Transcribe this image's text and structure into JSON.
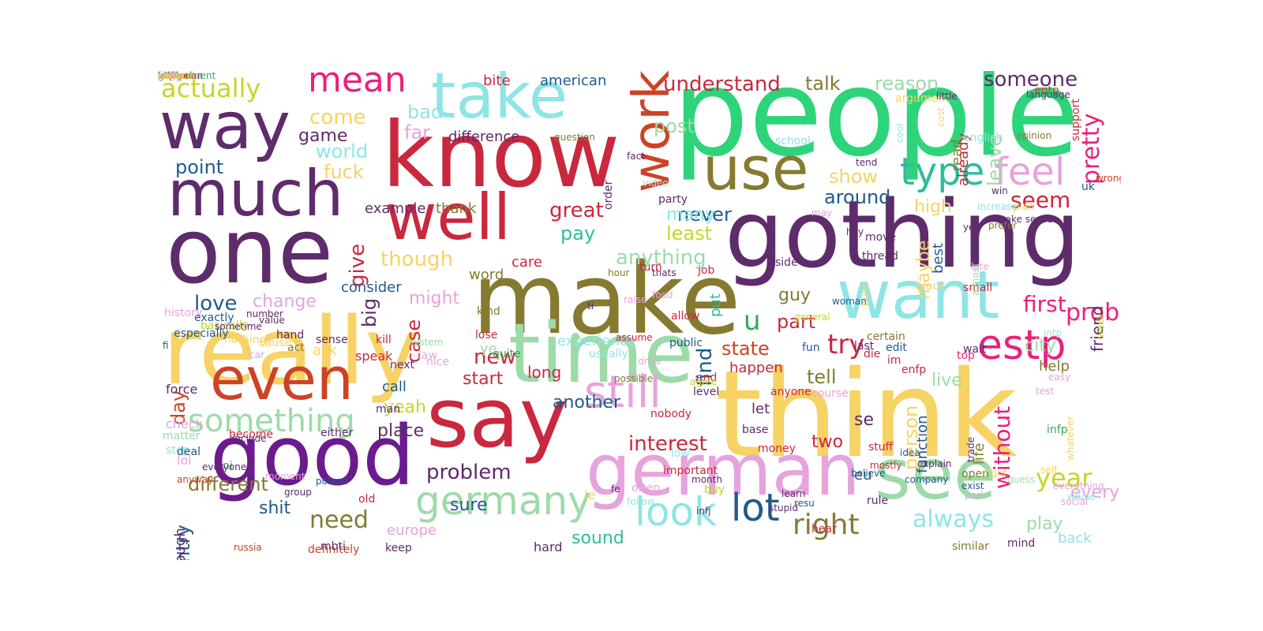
{
  "words": [
    {
      "text": "people",
      "color": "#2ed47a"
    },
    {
      "text": "think",
      "color": "#f7d264"
    },
    {
      "text": "really",
      "color": "#f7d264"
    },
    {
      "text": "gothing",
      "color": "#5e2b6b"
    },
    {
      "text": "make",
      "color": "#857a30"
    },
    {
      "text": "know",
      "color": "#c9283e"
    },
    {
      "text": "one",
      "color": "#5e2b6b"
    },
    {
      "text": "say",
      "color": "#c9283e"
    },
    {
      "text": "time",
      "color": "#9cdba8"
    },
    {
      "text": "good",
      "color": "#6a1b8e"
    },
    {
      "text": "want",
      "color": "#8ee5e5"
    },
    {
      "text": "german",
      "color": "#e6a3dc"
    },
    {
      "text": "see",
      "color": "#9cdba8"
    },
    {
      "text": "well",
      "color": "#c9283e"
    },
    {
      "text": "way",
      "color": "#5e2b6b"
    },
    {
      "text": "much",
      "color": "#5e2b6b"
    },
    {
      "text": "take",
      "color": "#8ee5e5"
    },
    {
      "text": "use",
      "color": "#857a30"
    },
    {
      "text": "even",
      "color": "#cc4325"
    },
    {
      "text": "work",
      "color": "#cc4325"
    },
    {
      "text": "germany",
      "color": "#9cdba8"
    },
    {
      "text": "still",
      "color": "#e6a3dc"
    },
    {
      "text": "estp",
      "color": "#e8217d"
    },
    {
      "text": "look",
      "color": "#8ee5e5"
    },
    {
      "text": "lot",
      "color": "#1f5a8c"
    },
    {
      "text": "something",
      "color": "#9cdba8"
    },
    {
      "text": "feel",
      "color": "#e6a3dc"
    },
    {
      "text": "type",
      "color": "#2ebc9c"
    },
    {
      "text": "mean",
      "color": "#e8217d"
    },
    {
      "text": "actually",
      "color": "#c4d62a"
    },
    {
      "text": "right",
      "color": "#857a30"
    },
    {
      "text": "u",
      "color": "#2eab56"
    },
    {
      "text": "try",
      "color": "#c9283e"
    },
    {
      "text": "problem",
      "color": "#5e2b6b"
    },
    {
      "text": "always",
      "color": "#8ee5e5"
    },
    {
      "text": "year",
      "color": "#c4d62a"
    },
    {
      "text": "probably",
      "color": "#e8217d"
    },
    {
      "text": "someone",
      "color": "#5e2b6b"
    },
    {
      "text": "need",
      "color": "#857a30"
    },
    {
      "text": "different",
      "color": "#857a30"
    },
    {
      "text": "country",
      "color": "#1f5a8c"
    },
    {
      "text": "come",
      "color": "#f7d264"
    },
    {
      "text": "first",
      "color": "#e8217d"
    },
    {
      "text": "seem",
      "color": "#c9283e"
    },
    {
      "text": "interest",
      "color": "#c9283e"
    },
    {
      "text": "find",
      "color": "#1f5a8c"
    },
    {
      "text": "understand",
      "color": "#c9283e"
    },
    {
      "text": "talk",
      "color": "#857a30"
    },
    {
      "text": "reason",
      "color": "#9cdba8"
    },
    {
      "text": "point",
      "color": "#1f5a8c"
    },
    {
      "text": "game",
      "color": "#5e2b6b"
    },
    {
      "text": "world",
      "color": "#8ee5e5"
    },
    {
      "text": "fuck",
      "color": "#f7d264"
    },
    {
      "text": "post",
      "color": "#9cdba8"
    },
    {
      "text": "bad",
      "color": "#8ee5e5"
    },
    {
      "text": "far",
      "color": "#e6a3dc"
    },
    {
      "text": "difference",
      "color": "#5e2b6b"
    },
    {
      "text": "great",
      "color": "#c9283e"
    },
    {
      "text": "pay",
      "color": "#2ebc9c"
    },
    {
      "text": "least",
      "color": "#c4d62a"
    },
    {
      "text": "never",
      "color": "#1f5a8c"
    },
    {
      "text": "anything",
      "color": "#9cdba8"
    },
    {
      "text": "around",
      "color": "#1f5a8c"
    },
    {
      "text": "show",
      "color": "#f7d264"
    },
    {
      "text": "high",
      "color": "#f7d264"
    },
    {
      "text": "many",
      "color": "#8ee5e5"
    },
    {
      "text": "though",
      "color": "#f7d264"
    },
    {
      "text": "love",
      "color": "#1f5a8c"
    },
    {
      "text": "change",
      "color": "#e6a3dc"
    },
    {
      "text": "might",
      "color": "#e6a3dc"
    },
    {
      "text": "state",
      "color": "#cc4325"
    },
    {
      "text": "part",
      "color": "#c9283e"
    },
    {
      "text": "guy",
      "color": "#857a30"
    },
    {
      "text": "tell",
      "color": "#857a30"
    },
    {
      "text": "city",
      "color": "#9cdba8"
    },
    {
      "text": "new",
      "color": "#c9283e"
    },
    {
      "text": "start",
      "color": "#c9283e"
    },
    {
      "text": "yeah",
      "color": "#c4d62a"
    },
    {
      "text": "live",
      "color": "#9cdba8"
    },
    {
      "text": "happen",
      "color": "#c9283e"
    },
    {
      "text": "example",
      "color": "#5e2b6b"
    },
    {
      "text": "thank",
      "color": "#857a30"
    },
    {
      "text": "give",
      "color": "#c9283e"
    },
    {
      "text": "big",
      "color": "#5e2b6b"
    },
    {
      "text": "case",
      "color": "#c9283e"
    },
    {
      "text": "day",
      "color": "#cc4325"
    },
    {
      "text": "shit",
      "color": "#1f5a8c"
    },
    {
      "text": "sure",
      "color": "#1f5a8c"
    },
    {
      "text": "place",
      "color": "#5e2b6b"
    },
    {
      "text": "call",
      "color": "#1f5a8c"
    },
    {
      "text": "another",
      "color": "#1f5a8c"
    },
    {
      "text": "experience",
      "color": "#8ee5e5"
    },
    {
      "text": "sound",
      "color": "#2ebc9c"
    },
    {
      "text": "play",
      "color": "#9cdba8"
    },
    {
      "text": "every",
      "color": "#e6a3dc"
    },
    {
      "text": "back",
      "color": "#8ee5e5"
    },
    {
      "text": "help",
      "color": "#857a30"
    },
    {
      "text": "without",
      "color": "#e8217d"
    },
    {
      "text": "life",
      "color": "#857a30"
    },
    {
      "text": "function",
      "color": "#1f5a8c"
    },
    {
      "text": "person",
      "color": "#f7d264"
    },
    {
      "text": "friend",
      "color": "#5e2b6b"
    },
    {
      "text": "pretty",
      "color": "#e8217d"
    },
    {
      "text": "leave",
      "color": "#9cdba8"
    },
    {
      "text": "read",
      "color": "#857a30"
    },
    {
      "text": "already",
      "color": "#c9283e"
    },
    {
      "text": "maybe",
      "color": "#f7d264"
    },
    {
      "text": "best",
      "color": "#1f5a8c"
    },
    {
      "text": "long",
      "color": "#c9283e"
    },
    {
      "text": "two",
      "color": "#c9283e"
    },
    {
      "text": "se",
      "color": "#5e2b6b"
    },
    {
      "text": "let",
      "color": "#5e2b6b"
    },
    {
      "text": "eu",
      "color": "#1f5a8c"
    },
    {
      "text": "europe",
      "color": "#e6a3dc"
    },
    {
      "text": "enough",
      "color": "#5e2b6b"
    },
    {
      "text": "consider",
      "color": "#1f5a8c"
    },
    {
      "text": "word",
      "color": "#857a30"
    },
    {
      "text": "care",
      "color": "#c9283e"
    },
    {
      "text": "hard",
      "color": "#5e2b6b"
    },
    {
      "text": "american",
      "color": "#1f5a8c"
    },
    {
      "text": "bite",
      "color": "#c9283e"
    },
    {
      "text": "ye",
      "color": "#9cdba8"
    },
    {
      "text": "put",
      "color": "#2ebc9c"
    },
    {
      "text": "ask",
      "color": "#f7d264"
    },
    {
      "text": "speak",
      "color": "#c9283e"
    },
    {
      "text": "definitely",
      "color": "#cc4325"
    },
    {
      "text": "mbti",
      "color": "#5e2b6b"
    },
    {
      "text": "russia",
      "color": "#cc4325"
    },
    {
      "text": "either",
      "color": "#5e2b6b"
    },
    {
      "text": "become",
      "color": "#c9283e"
    },
    {
      "text": "man",
      "color": "#5e2b6b"
    },
    {
      "text": "stuff",
      "color": "#c9283e"
    },
    {
      "text": "money",
      "color": "#c9283e"
    },
    {
      "text": "base",
      "color": "#5e2b6b"
    },
    {
      "text": "rule",
      "color": "#5e2b6b"
    },
    {
      "text": "infp",
      "color": "#2eab56"
    },
    {
      "text": "mind",
      "color": "#5e2b6b"
    },
    {
      "text": "similar",
      "color": "#857a30"
    },
    {
      "text": "hear",
      "color": "#c9283e"
    },
    {
      "text": "infj",
      "color": "#5e2b6b"
    },
    {
      "text": "month",
      "color": "#5e2b6b"
    },
    {
      "text": "keep",
      "color": "#5e2b6b"
    },
    {
      "text": "old",
      "color": "#c9283e"
    },
    {
      "text": "le",
      "color": "#f7d264"
    },
    {
      "text": "open",
      "color": "#857a30"
    },
    {
      "text": "fun",
      "color": "#1f5a8c"
    },
    {
      "text": "last",
      "color": "#5e2b6b"
    },
    {
      "text": "edit",
      "color": "#1f5a8c"
    },
    {
      "text": "certain",
      "color": "#857a30"
    },
    {
      "text": "lose",
      "color": "#c9283e"
    },
    {
      "text": "kind",
      "color": "#857a30"
    },
    {
      "text": "quite",
      "color": "#2eab56"
    },
    {
      "text": "public",
      "color": "#1f5a8c"
    },
    {
      "text": "allow",
      "color": "#c9283e"
    },
    {
      "text": "end",
      "color": "#c9283e"
    },
    {
      "text": "level",
      "color": "#5e2b6b"
    },
    {
      "text": "anyone",
      "color": "#c9283e"
    },
    {
      "text": "course",
      "color": "#e6a3dc"
    },
    {
      "text": "die",
      "color": "#c9283e"
    },
    {
      "text": "enfp",
      "color": "#c9283e"
    },
    {
      "text": "im",
      "color": "#c9283e"
    },
    {
      "text": "wait",
      "color": "#5e2b6b"
    },
    {
      "text": "top",
      "color": "#e8217d"
    },
    {
      "text": "small",
      "color": "#c9283e"
    },
    {
      "text": "black",
      "color": "#f7d264"
    },
    {
      "text": "thread",
      "color": "#5e2b6b"
    },
    {
      "text": "move",
      "color": "#5e2b6b"
    },
    {
      "text": "side",
      "color": "#5e2b6b"
    },
    {
      "text": "job",
      "color": "#c9283e"
    },
    {
      "text": "turn",
      "color": "#c9283e"
    },
    {
      "text": "hour",
      "color": "#857a30"
    },
    {
      "text": "thats",
      "color": "#5e2b6b"
    },
    {
      "text": "party",
      "color": "#5e2b6b"
    },
    {
      "text": "order",
      "color": "#5e2b6b"
    },
    {
      "text": "video",
      "color": "#8ee5e5"
    },
    {
      "text": "fact",
      "color": "#5e2b6b"
    },
    {
      "text": "question",
      "color": "#857a30"
    },
    {
      "text": "school",
      "color": "#8ee5e5"
    },
    {
      "text": "argument",
      "color": "#f7d264"
    },
    {
      "text": "english",
      "color": "#8ee5e5"
    },
    {
      "text": "opinion",
      "color": "#857a30"
    },
    {
      "text": "win",
      "color": "#5e2b6b"
    },
    {
      "text": "wrong",
      "color": "#cc4325"
    },
    {
      "text": "uk",
      "color": "#1f5a8c"
    },
    {
      "text": "support",
      "color": "#c9283e"
    },
    {
      "text": "entp",
      "color": "#cc4325"
    },
    {
      "text": "language",
      "color": "#5e2b6b"
    },
    {
      "text": "little",
      "color": "#5e2b6b"
    },
    {
      "text": "cost",
      "color": "#f7d264"
    },
    {
      "text": "cool",
      "color": "#8ee5e5"
    },
    {
      "text": "tend",
      "color": "#5e2b6b"
    },
    {
      "text": "plan",
      "color": "#f7d264"
    },
    {
      "text": "make sense",
      "color": "#5e2b6b"
    },
    {
      "text": "prefer",
      "color": "#857a30"
    },
    {
      "text": "increase",
      "color": "#8ee5e5"
    },
    {
      "text": "yet",
      "color": "#5e2b6b"
    },
    {
      "text": "late",
      "color": "#e6a3dc"
    },
    {
      "text": "almost",
      "color": "#9cdba8"
    },
    {
      "text": "hey",
      "color": "#5e2b6b"
    },
    {
      "text": "may",
      "color": "#e6a3dc"
    },
    {
      "text": "build",
      "color": "#f7d264"
    },
    {
      "text": "woman",
      "color": "#1f5a8c"
    },
    {
      "text": "general",
      "color": "#c4d62a"
    },
    {
      "text": "intp",
      "color": "#8ee5e5"
    },
    {
      "text": "week",
      "color": "#c4d62a"
    },
    {
      "text": "easy",
      "color": "#e6a3dc"
    },
    {
      "text": "test",
      "color": "#e6a3dc"
    },
    {
      "text": "whatever",
      "color": "#f7d264"
    },
    {
      "text": "self",
      "color": "#f7d264"
    },
    {
      "text": "whole",
      "color": "#8ee5e5"
    },
    {
      "text": "everything",
      "color": "#e6a3dc"
    },
    {
      "text": "social",
      "color": "#e6a3dc"
    },
    {
      "text": "park",
      "color": "#e6a3dc"
    },
    {
      "text": "guess",
      "color": "#9cdba8"
    },
    {
      "text": "fight",
      "color": "#f7d264"
    },
    {
      "text": "trade",
      "color": "#5e2b6b"
    },
    {
      "text": "exist",
      "color": "#1f5a8c"
    },
    {
      "text": "idea",
      "color": "#1f5a8c"
    },
    {
      "text": "explain",
      "color": "#5e2b6b"
    },
    {
      "text": "company",
      "color": "#1f5a8c"
    },
    {
      "text": "mostly",
      "color": "#c9283e"
    },
    {
      "text": "believe",
      "color": "#1f5a8c"
    },
    {
      "text": "resu",
      "color": "#1f5a8c"
    },
    {
      "text": "stupid",
      "color": "#5e2b6b"
    },
    {
      "text": "learn",
      "color": "#5e2b6b"
    },
    {
      "text": "buy",
      "color": "#c4d62a"
    },
    {
      "text": "important",
      "color": "#c9283e"
    },
    {
      "text": "often",
      "color": "#e6a3dc"
    },
    {
      "text": "follow",
      "color": "#8ee5e5"
    },
    {
      "text": "fe",
      "color": "#5e2b6b"
    },
    {
      "text": "low",
      "color": "#8ee5e5"
    },
    {
      "text": "nobody",
      "color": "#c9283e"
    },
    {
      "text": "possible",
      "color": "#857a30"
    },
    {
      "text": "usually",
      "color": "#8ee5e5"
    },
    {
      "text": "ti",
      "color": "#5e2b6b"
    },
    {
      "text": "raise",
      "color": "#e6a3dc"
    },
    {
      "text": "food",
      "color": "#e6a3dc"
    },
    {
      "text": "assume",
      "color": "#c9283e"
    },
    {
      "text": "drive",
      "color": "#e6a3dc"
    },
    {
      "text": "agree",
      "color": "#c4d62a"
    },
    {
      "text": "law",
      "color": "#e6a3dc"
    },
    {
      "text": "nice",
      "color": "#e6a3dc"
    },
    {
      "text": "system",
      "color": "#9cdba8"
    },
    {
      "text": "next",
      "color": "#5e2b6b"
    },
    {
      "text": "kill",
      "color": "#c9283e"
    },
    {
      "text": "sense",
      "color": "#5e2b6b"
    },
    {
      "text": "act",
      "color": "#857a30"
    },
    {
      "text": "cause",
      "color": "#f7d264"
    },
    {
      "text": "car",
      "color": "#e6a3dc"
    },
    {
      "text": "nothing",
      "color": "#f7d264"
    },
    {
      "text": "basically",
      "color": "#c4d62a"
    },
    {
      "text": "especially",
      "color": "#1f5a8c"
    },
    {
      "text": "poland",
      "color": "#1f5a8c"
    },
    {
      "text": "group",
      "color": "#5e2b6b"
    },
    {
      "text": "moment",
      "color": "#e6a3dc"
    },
    {
      "text": "include",
      "color": "#5e2b6b"
    },
    {
      "text": "ni",
      "color": "#2eab56"
    },
    {
      "text": "everyone",
      "color": "#5e2b6b"
    },
    {
      "text": "lol",
      "color": "#e6a3dc"
    },
    {
      "text": "check",
      "color": "#e6a3dc"
    },
    {
      "text": "force",
      "color": "#5e2b6b"
    },
    {
      "text": "stop",
      "color": "#8ee5e5"
    },
    {
      "text": "matter",
      "color": "#9cdba8"
    },
    {
      "text": "deal",
      "color": "#1f5a8c"
    },
    {
      "text": "anyway",
      "color": "#cc4325"
    },
    {
      "text": "fi",
      "color": "#1f5a8c"
    },
    {
      "text": "history",
      "color": "#e6a3dc"
    },
    {
      "text": "exactly",
      "color": "#1f5a8c"
    },
    {
      "text": "sometime",
      "color": "#5e2b6b"
    },
    {
      "text": "number",
      "color": "#5e2b6b"
    },
    {
      "text": "value",
      "color": "#5e2b6b"
    },
    {
      "text": "hand",
      "color": "#5e2b6b"
    },
    {
      "text": "government",
      "color": "#2eab56"
    },
    {
      "text": "comment",
      "color": "#8ee5e5"
    },
    {
      "text": "issue",
      "color": "#5e2b6b"
    },
    {
      "text": "power",
      "color": "#f7d264"
    },
    {
      "text": "war",
      "color": "#cc4325"
    },
    {
      "text": "vote",
      "color": "#c9283e"
    },
    {
      "text": "oh",
      "color": "#1f5a8c"
    },
    {
      "text": "istp",
      "color": "#5e2b6b"
    },
    {
      "text": "second",
      "color": "#857a30"
    },
    {
      "text": "european",
      "color": "#c9283e"
    },
    {
      "text": "rather",
      "color": "#5e2b6b"
    },
    {
      "text": "run",
      "color": "#cc4325"
    },
    {
      "text": "large",
      "color": "#f7d264"
    },
    {
      "text": "instead",
      "color": "#e6a3dc"
    },
    {
      "text": "sort",
      "color": "#5e2b6b"
    },
    {
      "text": "ne",
      "color": "#e6a3dc"
    },
    {
      "text": "free",
      "color": "#c9283e"
    },
    {
      "text": "sorry",
      "color": "#5e2b6b"
    },
    {
      "text": "full",
      "color": "#8ee5e5"
    },
    {
      "text": "hold",
      "color": "#5e2b6b"
    },
    {
      "text": "name",
      "color": "#f7d264"
    },
    {
      "text": "write",
      "color": "#e6a3dc"
    },
    {
      "text": "likely",
      "color": "#e6a3dc"
    },
    {
      "text": "true",
      "color": "#c9283e"
    },
    {
      "text": "area",
      "color": "#f7d264"
    },
    {
      "text": "police",
      "color": "#c4d62a"
    },
    {
      "text": "able",
      "color": "#8ee5e5"
    },
    {
      "text": "others",
      "color": "#c9283e"
    },
    {
      "text": "close",
      "color": "#8ee5e5"
    },
    {
      "text": "real",
      "color": "#e6a3dc"
    },
    {
      "text": "political",
      "color": "#c4d62a"
    },
    {
      "text": "coure",
      "color": "#f7d264"
    }
  ]
}
